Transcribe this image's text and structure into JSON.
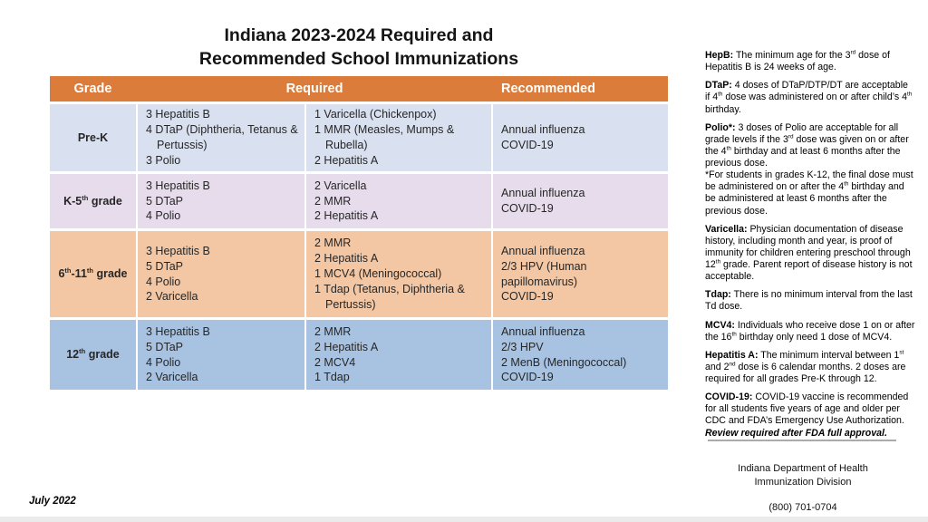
{
  "title": {
    "line1": "Indiana 2023-2024 Required and",
    "line2": "Recommended School Immunizations"
  },
  "table": {
    "headers": [
      "Grade",
      "Required",
      "Recommended"
    ],
    "rows": [
      {
        "grade": "Pre-K",
        "bg": "#D9E1F0",
        "required_col1": [
          "3 Hepatitis B",
          "4 DTaP (Diphtheria, Tetanus & Pertussis)",
          "3 Polio"
        ],
        "required_col2": [
          "1 Varicella (Chickenpox)",
          "1 MMR (Measles, Mumps & Rubella)",
          "2 Hepatitis A"
        ],
        "recommended": [
          "Annual influenza",
          "COVID-19"
        ]
      },
      {
        "grade": "K-5^th^ grade",
        "bg": "#E6DCEB",
        "required_col1": [
          "3 Hepatitis B",
          "5 DTaP",
          "4 Polio"
        ],
        "required_col2": [
          "2 Varicella",
          "2 MMR",
          "2 Hepatitis A"
        ],
        "recommended": [
          "Annual influenza",
          "COVID-19"
        ]
      },
      {
        "grade": "6^th^-11^th^ grade",
        "bg": "#F3C7A4",
        "required_col1": [
          "3 Hepatitis B",
          "5 DTaP",
          "4 Polio",
          "2 Varicella"
        ],
        "required_col2": [
          "2 MMR",
          "2 Hepatitis A",
          "1 MCV4 (Meningococcal)",
          "1 Tdap (Tetanus, Diphtheria & Pertussis)"
        ],
        "recommended": [
          "Annual influenza",
          "2/3 HPV (Human papillomavirus)",
          "COVID-19"
        ]
      },
      {
        "grade": "12^th^ grade",
        "bg": "#A8C3E2",
        "required_col1": [
          "3 Hepatitis B",
          "5 DTaP",
          "4 Polio",
          "2 Varicella"
        ],
        "required_col2": [
          "2 MMR",
          "2 Hepatitis A",
          "2 MCV4",
          "1 Tdap"
        ],
        "recommended": [
          "Annual influenza",
          "2/3 HPV",
          "2 MenB (Meningococcal)",
          "COVID-19"
        ]
      }
    ]
  },
  "notes": [
    {
      "label": "HepB:",
      "text": "The minimum age for the 3^rd^ dose of Hepatitis B is 24 weeks of age."
    },
    {
      "label": "DTaP:",
      "text": "4 doses of DTaP/DTP/DT are acceptable if 4^th^ dose was administered on or after child’s 4^th^ birthday."
    },
    {
      "label": "Polio*:",
      "text": "3 doses of Polio are acceptable for all grade levels if the 3^rd^ dose was given on or after the 4^th^ birthday and at least 6 months after the previous dose.\n*For students in grades K-12, the final dose must be administered on or after the 4^th^ birthday and be administered at least 6 months after the previous dose."
    },
    {
      "label": "Varicella:",
      "text": "Physician documentation of disease history, including month and year, is proof of immunity for children entering preschool through 12^th^ grade. Parent report of disease history is not acceptable."
    },
    {
      "label": "Tdap:",
      "text": "There is no minimum interval from the last Td dose."
    },
    {
      "label": "MCV4:",
      "text": "Individuals who receive dose 1 on or after the 16^th^ birthday only need 1 dose of MCV4."
    },
    {
      "label": "Hepatitis A:",
      "text": "The minimum interval between 1^st^ and 2^nd^ dose is 6 calendar months. 2 doses are required for all grades Pre-K through 12."
    },
    {
      "label": "COVID-19:",
      "text": "COVID-19 vaccine is recommended for all students five years of age and older per CDC and FDA’s Emergency Use Authorization.",
      "italic": "Review required after FDA full approval."
    }
  ],
  "footer": {
    "org_line1": "Indiana Department of Health",
    "org_line2": "Immunization Division",
    "phone": "(800) 701-0704",
    "date": "July 2022"
  },
  "colors": {
    "header_bg": "#DC7C3A",
    "header_text": "#FFFFFF",
    "row_prek_bg": "#D9E1F0",
    "row_k5_bg": "#E6DCEB",
    "row_6_11_bg": "#F3C7A4",
    "row_12_bg": "#A8C3E2",
    "divider": "#ABABAB",
    "bottom_bar": "#EBEBEB",
    "body_text": "#262626"
  }
}
